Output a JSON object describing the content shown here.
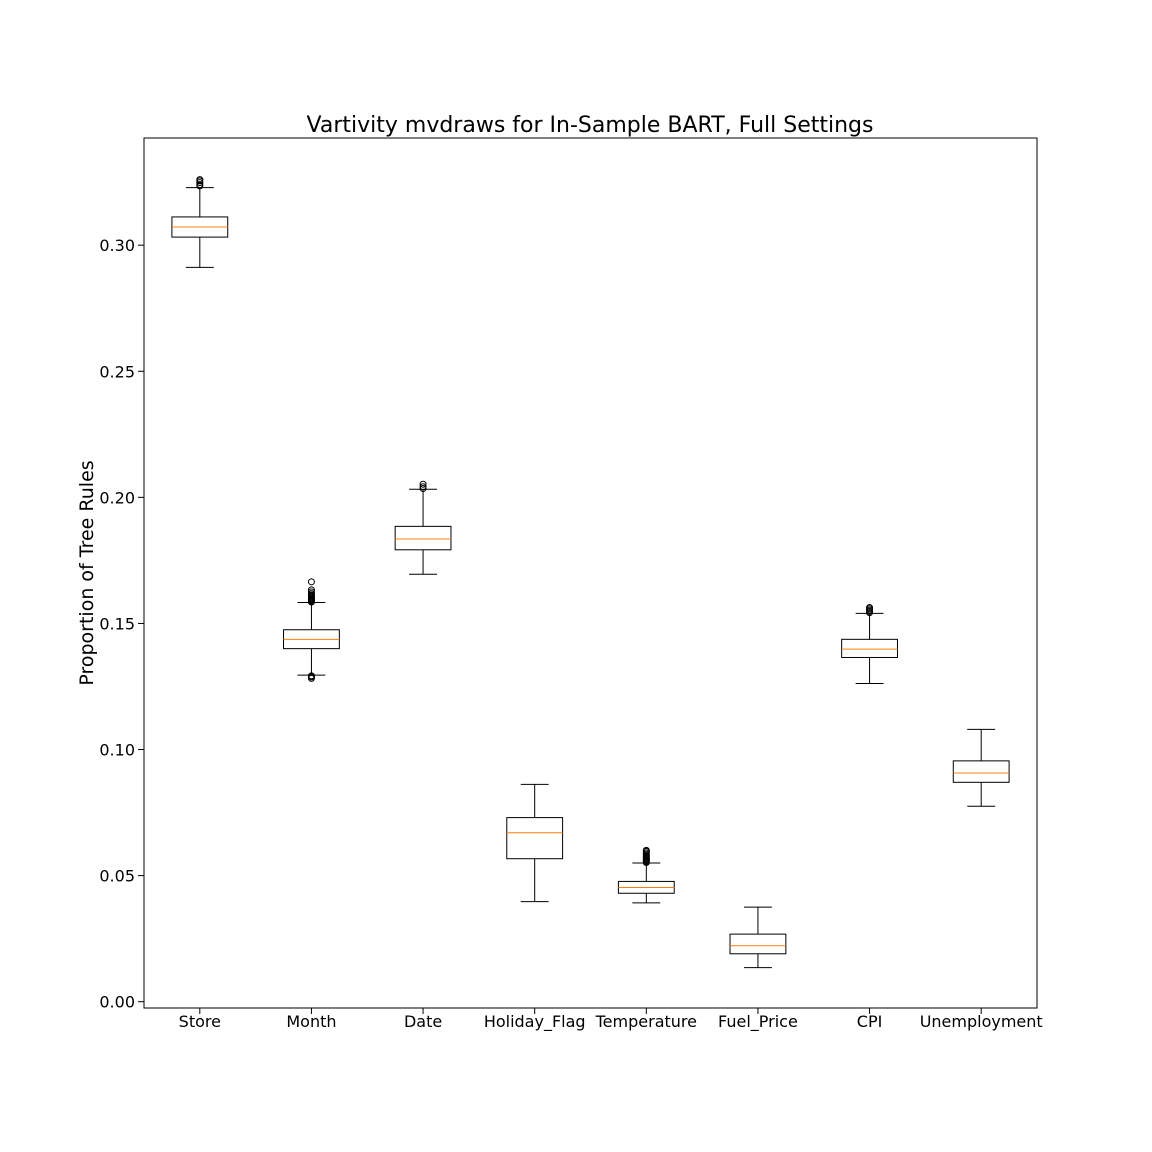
{
  "chart_data": {
    "type": "boxplot",
    "title": "Vartivity mvdraws for In-Sample BART, Full Settings",
    "xlabel": "",
    "ylabel": "Proportion of Tree Rules",
    "ylim": [
      -0.0025,
      0.3425
    ],
    "yticks": [
      0.0,
      0.05,
      0.1,
      0.15,
      0.2,
      0.25,
      0.3
    ],
    "ytick_labels": [
      "0.00",
      "0.05",
      "0.10",
      "0.15",
      "0.20",
      "0.25",
      "0.30"
    ],
    "grid": false,
    "colors": {
      "box_edge": "#000000",
      "median": "#ff7f0e",
      "flier_edge": "#000000"
    },
    "categories": [
      "Store",
      "Month",
      "Date",
      "Holiday_Flag",
      "Temperature",
      "Fuel_Price",
      "CPI",
      "Unemployment"
    ],
    "boxes": [
      {
        "label": "Store",
        "whisker_low": 0.2912,
        "q1": 0.3032,
        "median": 0.3072,
        "q3": 0.3112,
        "whisker_high": 0.3228,
        "fliers": [
          0.3235,
          0.324,
          0.3248,
          0.3255,
          0.326
        ]
      },
      {
        "label": "Month",
        "whisker_low": 0.1295,
        "q1": 0.14,
        "median": 0.1437,
        "q3": 0.1475,
        "whisker_high": 0.1583,
        "fliers": [
          0.1282,
          0.1288,
          0.1292,
          0.1585,
          0.1588,
          0.1592,
          0.1596,
          0.16,
          0.1604,
          0.1608,
          0.1613,
          0.1618,
          0.1625,
          0.1633,
          0.1665
        ]
      },
      {
        "label": "Date",
        "whisker_low": 0.1695,
        "q1": 0.1792,
        "median": 0.1835,
        "q3": 0.1885,
        "whisker_high": 0.2032,
        "fliers": [
          0.2035,
          0.2042,
          0.2052
        ]
      },
      {
        "label": "Holiday_Flag",
        "whisker_low": 0.0397,
        "q1": 0.0567,
        "median": 0.067,
        "q3": 0.073,
        "whisker_high": 0.0862,
        "fliers": []
      },
      {
        "label": "Temperature",
        "whisker_low": 0.0392,
        "q1": 0.043,
        "median": 0.0453,
        "q3": 0.0477,
        "whisker_high": 0.055,
        "fliers": [
          0.0552,
          0.0556,
          0.056,
          0.0564,
          0.0568,
          0.0572,
          0.0576,
          0.058,
          0.0585,
          0.059,
          0.0596,
          0.06
        ]
      },
      {
        "label": "Fuel_Price",
        "whisker_low": 0.0135,
        "q1": 0.019,
        "median": 0.0222,
        "q3": 0.0268,
        "whisker_high": 0.0375,
        "fliers": []
      },
      {
        "label": "CPI",
        "whisker_low": 0.1262,
        "q1": 0.1365,
        "median": 0.1398,
        "q3": 0.1437,
        "whisker_high": 0.154,
        "fliers": [
          0.1543,
          0.1548,
          0.1553,
          0.1558,
          0.1563
        ]
      },
      {
        "label": "Unemployment",
        "whisker_low": 0.0775,
        "q1": 0.087,
        "median": 0.0907,
        "q3": 0.0955,
        "whisker_high": 0.108,
        "fliers": []
      }
    ]
  }
}
